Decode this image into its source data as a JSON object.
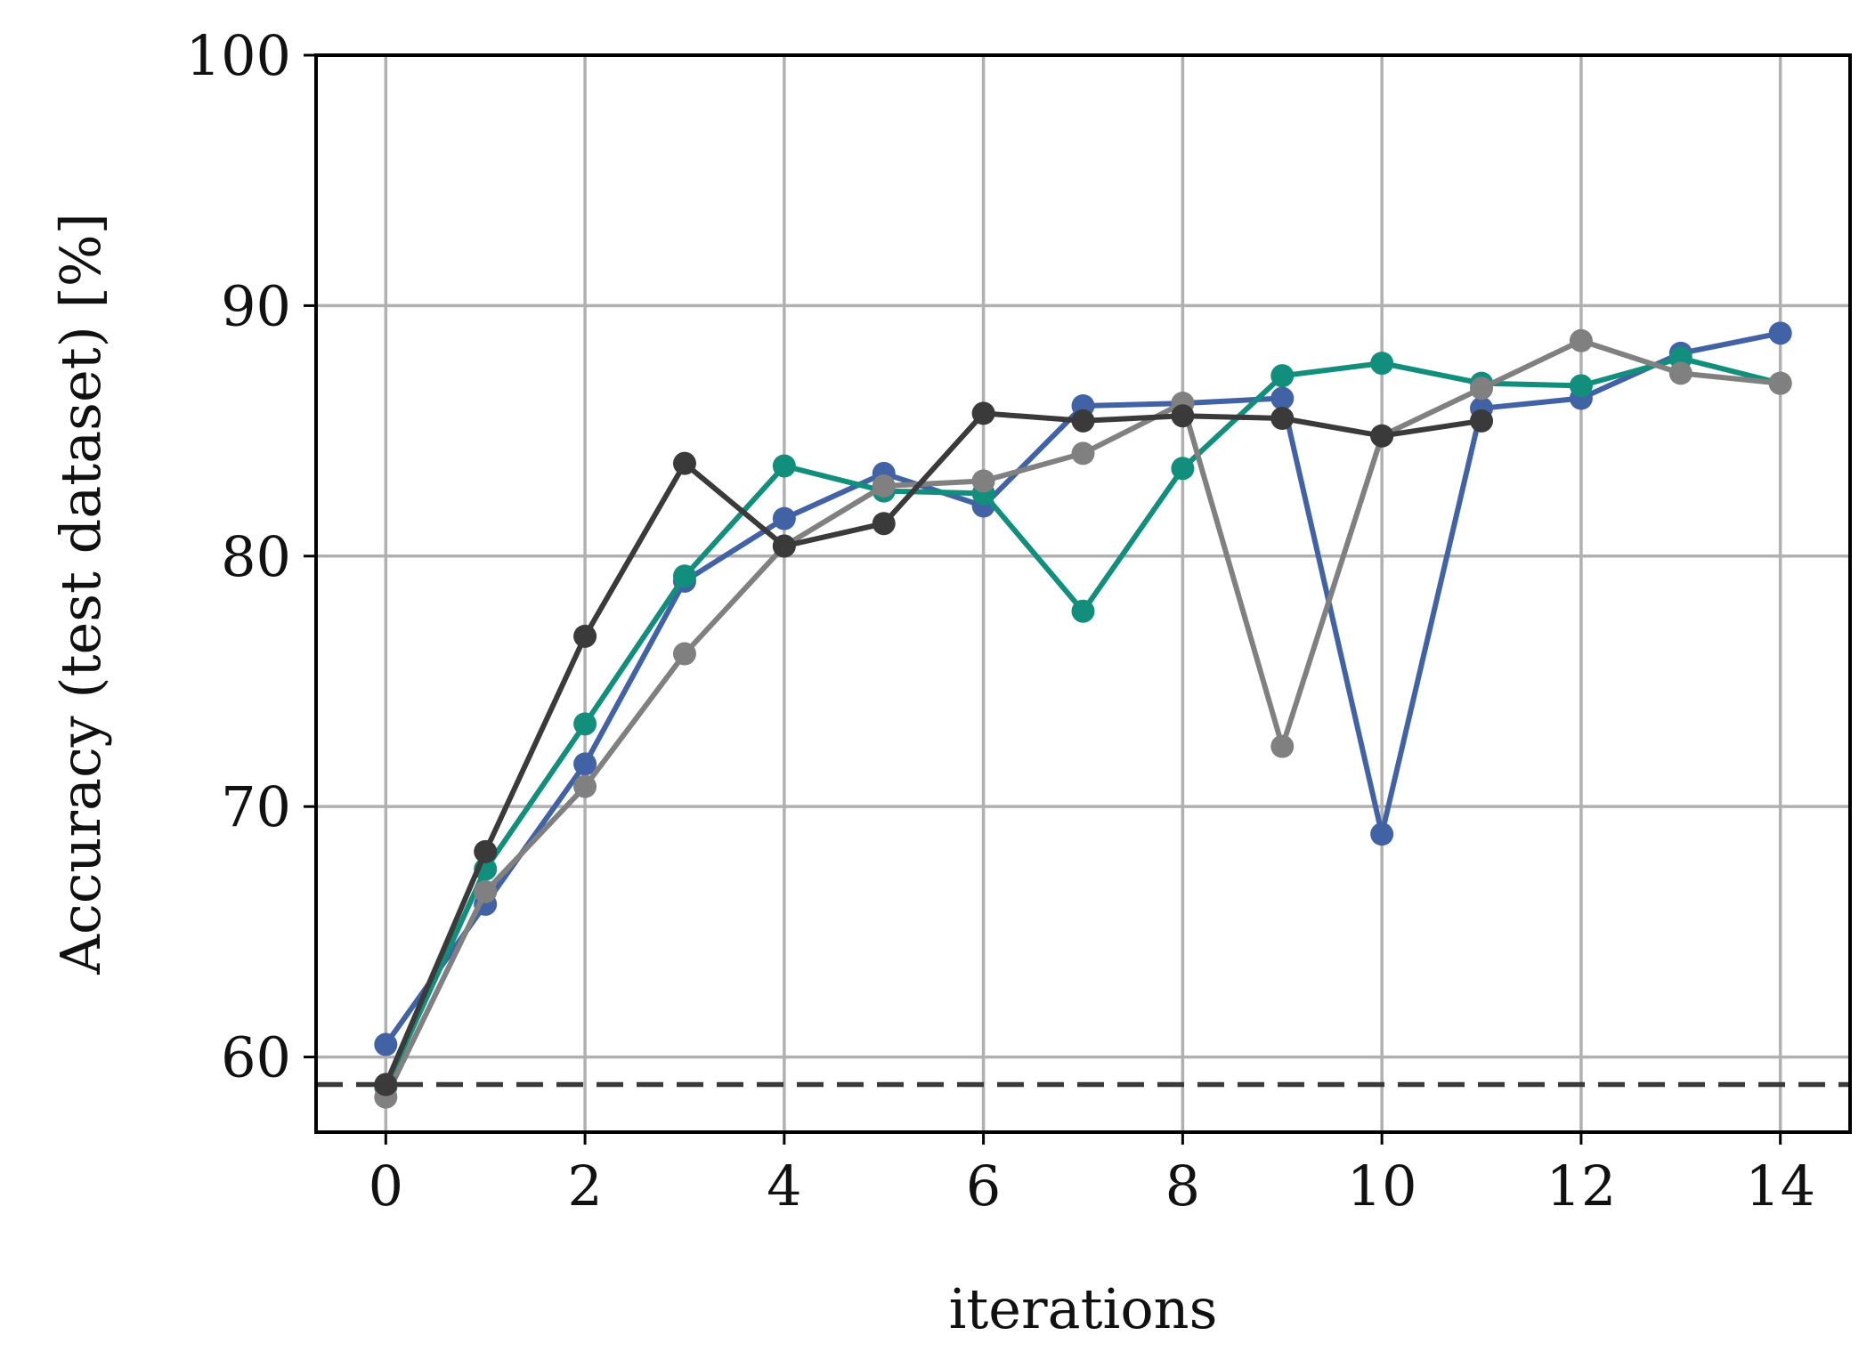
{
  "chart_data": {
    "type": "line",
    "title": "",
    "xlabel": "iterations",
    "ylabel": "Accuracy (test dataset) [%]",
    "xlim": [
      -0.7,
      14.7
    ],
    "ylim": [
      57,
      100
    ],
    "x_ticks": [
      0,
      2,
      4,
      6,
      8,
      10,
      12,
      14
    ],
    "y_ticks": [
      60,
      70,
      80,
      90,
      100
    ],
    "grid": true,
    "baseline": {
      "value": 58.9,
      "style": "dashed",
      "color": "#3a3a3a"
    },
    "series": [
      {
        "color": "#4262a6",
        "x": [
          0,
          1,
          2,
          3,
          4,
          5,
          6,
          7,
          8,
          9,
          10,
          11,
          12,
          13,
          14
        ],
        "values": [
          60.5,
          66.1,
          71.7,
          79.0,
          81.5,
          83.3,
          82.0,
          86.0,
          86.1,
          86.3,
          68.9,
          85.9,
          86.3,
          88.1,
          88.9
        ]
      },
      {
        "color": "#118f7c",
        "x": [
          0,
          1,
          2,
          3,
          4,
          5,
          6,
          7,
          8,
          9,
          10,
          11,
          12,
          13,
          14
        ],
        "values": [
          58.8,
          67.5,
          73.3,
          79.2,
          83.6,
          82.6,
          82.5,
          77.8,
          83.5,
          87.2,
          87.7,
          86.9,
          86.8,
          87.9,
          86.9
        ]
      },
      {
        "color": "#808080",
        "x": [
          0,
          1,
          2,
          3,
          4,
          5,
          6,
          7,
          8,
          9,
          10,
          11,
          12,
          13,
          14
        ],
        "values": [
          58.4,
          66.6,
          70.8,
          76.1,
          80.4,
          82.8,
          83.0,
          84.1,
          86.1,
          72.4,
          84.8,
          86.7,
          88.6,
          87.3,
          86.9
        ]
      },
      {
        "color": "#3a3a3a",
        "x": [
          0,
          1,
          2,
          3,
          4,
          5,
          6,
          7,
          8,
          9,
          10,
          11
        ],
        "values": [
          58.9,
          68.2,
          76.8,
          83.7,
          80.4,
          81.3,
          85.7,
          85.4,
          85.6,
          85.5,
          84.8,
          85.4
        ]
      }
    ]
  }
}
